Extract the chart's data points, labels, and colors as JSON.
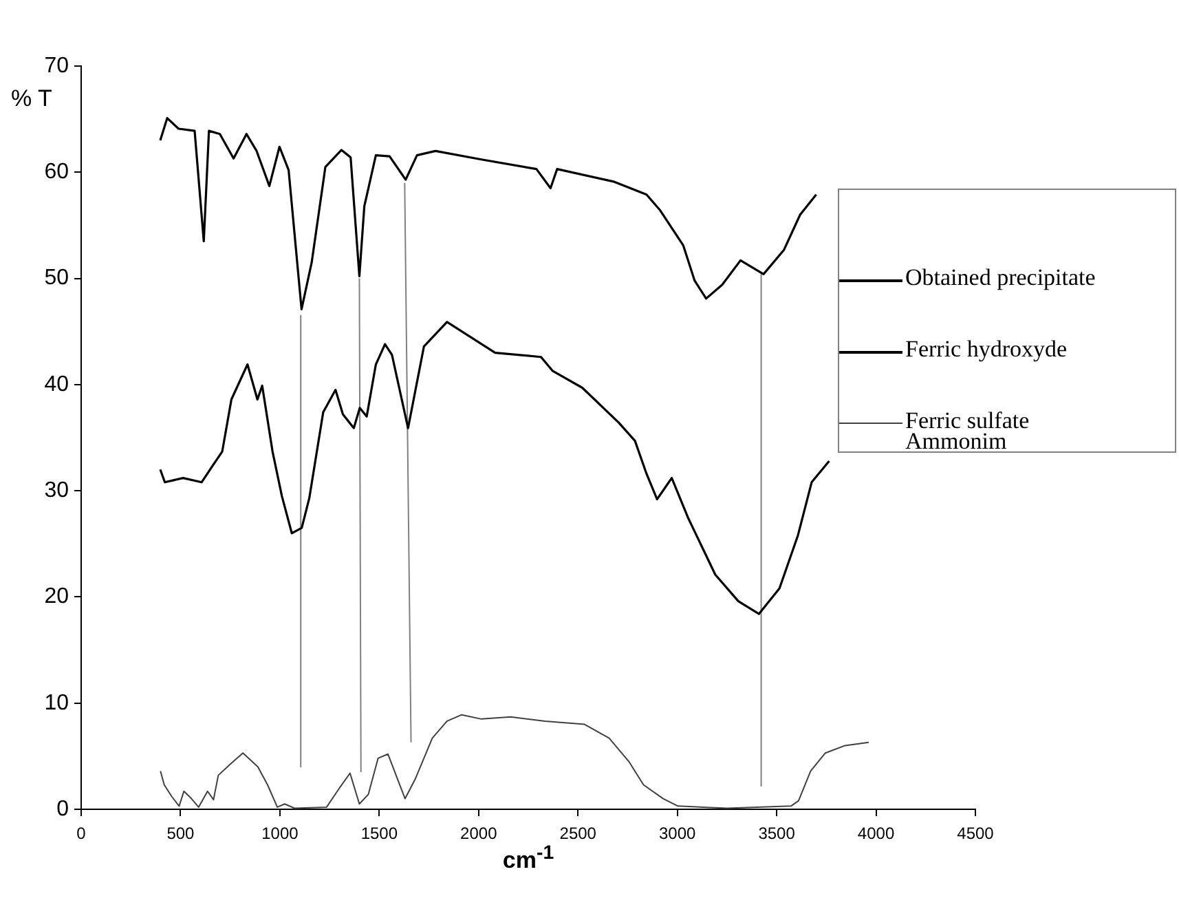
{
  "chart_data": {
    "type": "line",
    "xlabel": "cm$^{-1}$",
    "ylabel": "% T",
    "xlim": [
      0,
      4500
    ],
    "xticks": [
      0,
      500,
      1000,
      1500,
      2000,
      2500,
      3000,
      3500,
      4000,
      4500
    ],
    "ylim": [
      0,
      70
    ],
    "yticks": [
      0,
      10,
      20,
      30,
      40,
      50,
      60,
      70
    ],
    "grid": false,
    "legend": "right",
    "marker": "none",
    "line_style": "solid",
    "series": [
      {
        "name": "Obtained precipitate",
        "color": "#000000",
        "x": [
          398,
          433,
          490,
          571,
          617,
          643,
          698,
          767,
          832,
          883,
          947,
          998,
          1044,
          1109,
          1160,
          1229,
          1310,
          1356,
          1400,
          1425,
          1483,
          1552,
          1633,
          1690,
          1783,
          2014,
          2291,
          2362,
          2395,
          2683,
          2845,
          2914,
          3030,
          3087,
          3145,
          3226,
          3318,
          3434,
          3537,
          3618,
          3699
        ],
        "values": [
          63.0,
          65.1,
          64.1,
          63.9,
          53.5,
          63.9,
          63.6,
          61.3,
          63.6,
          62.0,
          58.7,
          62.4,
          60.2,
          47.1,
          51.5,
          60.5,
          62.1,
          61.4,
          50.2,
          56.8,
          61.6,
          61.5,
          59.3,
          61.6,
          62.0,
          61.2,
          60.3,
          58.5,
          60.3,
          59.1,
          57.9,
          56.4,
          53.1,
          49.8,
          48.1,
          49.4,
          51.7,
          50.4,
          52.7,
          56.0,
          57.9
        ]
      },
      {
        "name": "Ferric hydroxyde",
        "color": "#000000",
        "x": [
          398,
          421,
          513,
          606,
          663,
          710,
          756,
          837,
          887,
          911,
          963,
          1010,
          1060,
          1110,
          1148,
          1218,
          1280,
          1317,
          1372,
          1402,
          1437,
          1483,
          1529,
          1564,
          1645,
          1725,
          1841,
          2083,
          2314,
          2372,
          2522,
          2706,
          2787,
          2845,
          2898,
          2972,
          3053,
          3191,
          3307,
          3411,
          3514,
          3607,
          3676,
          3764
        ],
        "values": [
          32.0,
          30.8,
          31.2,
          30.8,
          32.4,
          33.7,
          38.6,
          41.9,
          38.6,
          39.9,
          33.7,
          29.5,
          26.0,
          26.5,
          29.3,
          37.4,
          39.5,
          37.2,
          35.9,
          37.8,
          37.0,
          41.9,
          43.8,
          42.8,
          35.9,
          43.6,
          45.9,
          43.0,
          42.6,
          41.3,
          39.7,
          36.4,
          34.7,
          31.6,
          29.2,
          31.2,
          27.5,
          22.1,
          19.6,
          18.4,
          20.8,
          25.8,
          30.8,
          32.8
        ]
      },
      {
        "name": "Ferric sulfate Ammonim",
        "color": "#404040",
        "x": [
          399,
          418,
          456,
          493,
          517,
          555,
          591,
          636,
          666,
          690,
          753,
          814,
          889,
          938,
          987,
          1024,
          1074,
          1235,
          1296,
          1353,
          1400,
          1445,
          1494,
          1544,
          1593,
          1630,
          1680,
          1767,
          1841,
          1915,
          2014,
          2162,
          2335,
          2533,
          2657,
          2756,
          2830,
          2929,
          3003,
          3251,
          3572,
          3610,
          3671,
          3745,
          3844,
          3963
        ],
        "values": [
          3.6,
          2.3,
          1.2,
          0.3,
          1.7,
          1.0,
          0.2,
          1.7,
          0.9,
          3.2,
          4.3,
          5.3,
          4.0,
          2.3,
          0.2,
          0.5,
          0.1,
          0.2,
          1.9,
          3.4,
          0.5,
          1.4,
          4.8,
          5.2,
          2.8,
          1.0,
          2.8,
          6.7,
          8.3,
          8.9,
          8.5,
          8.7,
          8.3,
          8.0,
          6.7,
          4.5,
          2.3,
          1.0,
          0.3,
          0.1,
          0.3,
          0.8,
          3.6,
          5.3,
          6.0,
          6.3
        ]
      },
      {
        "color": "#808080",
        "x": [
          1105,
          1105
        ],
        "values": [
          46.5,
          4
        ]
      },
      {
        "color": "#808080",
        "x": [
          1400,
          1408
        ],
        "values": [
          50,
          3.5
        ]
      },
      {
        "color": "#808080",
        "x": [
          1628,
          1660
        ],
        "values": [
          59,
          6.3
        ]
      },
      {
        "color": "#808080",
        "x": [
          3422,
          3422
        ],
        "values": [
          50.4,
          2.2
        ]
      }
    ]
  }
}
